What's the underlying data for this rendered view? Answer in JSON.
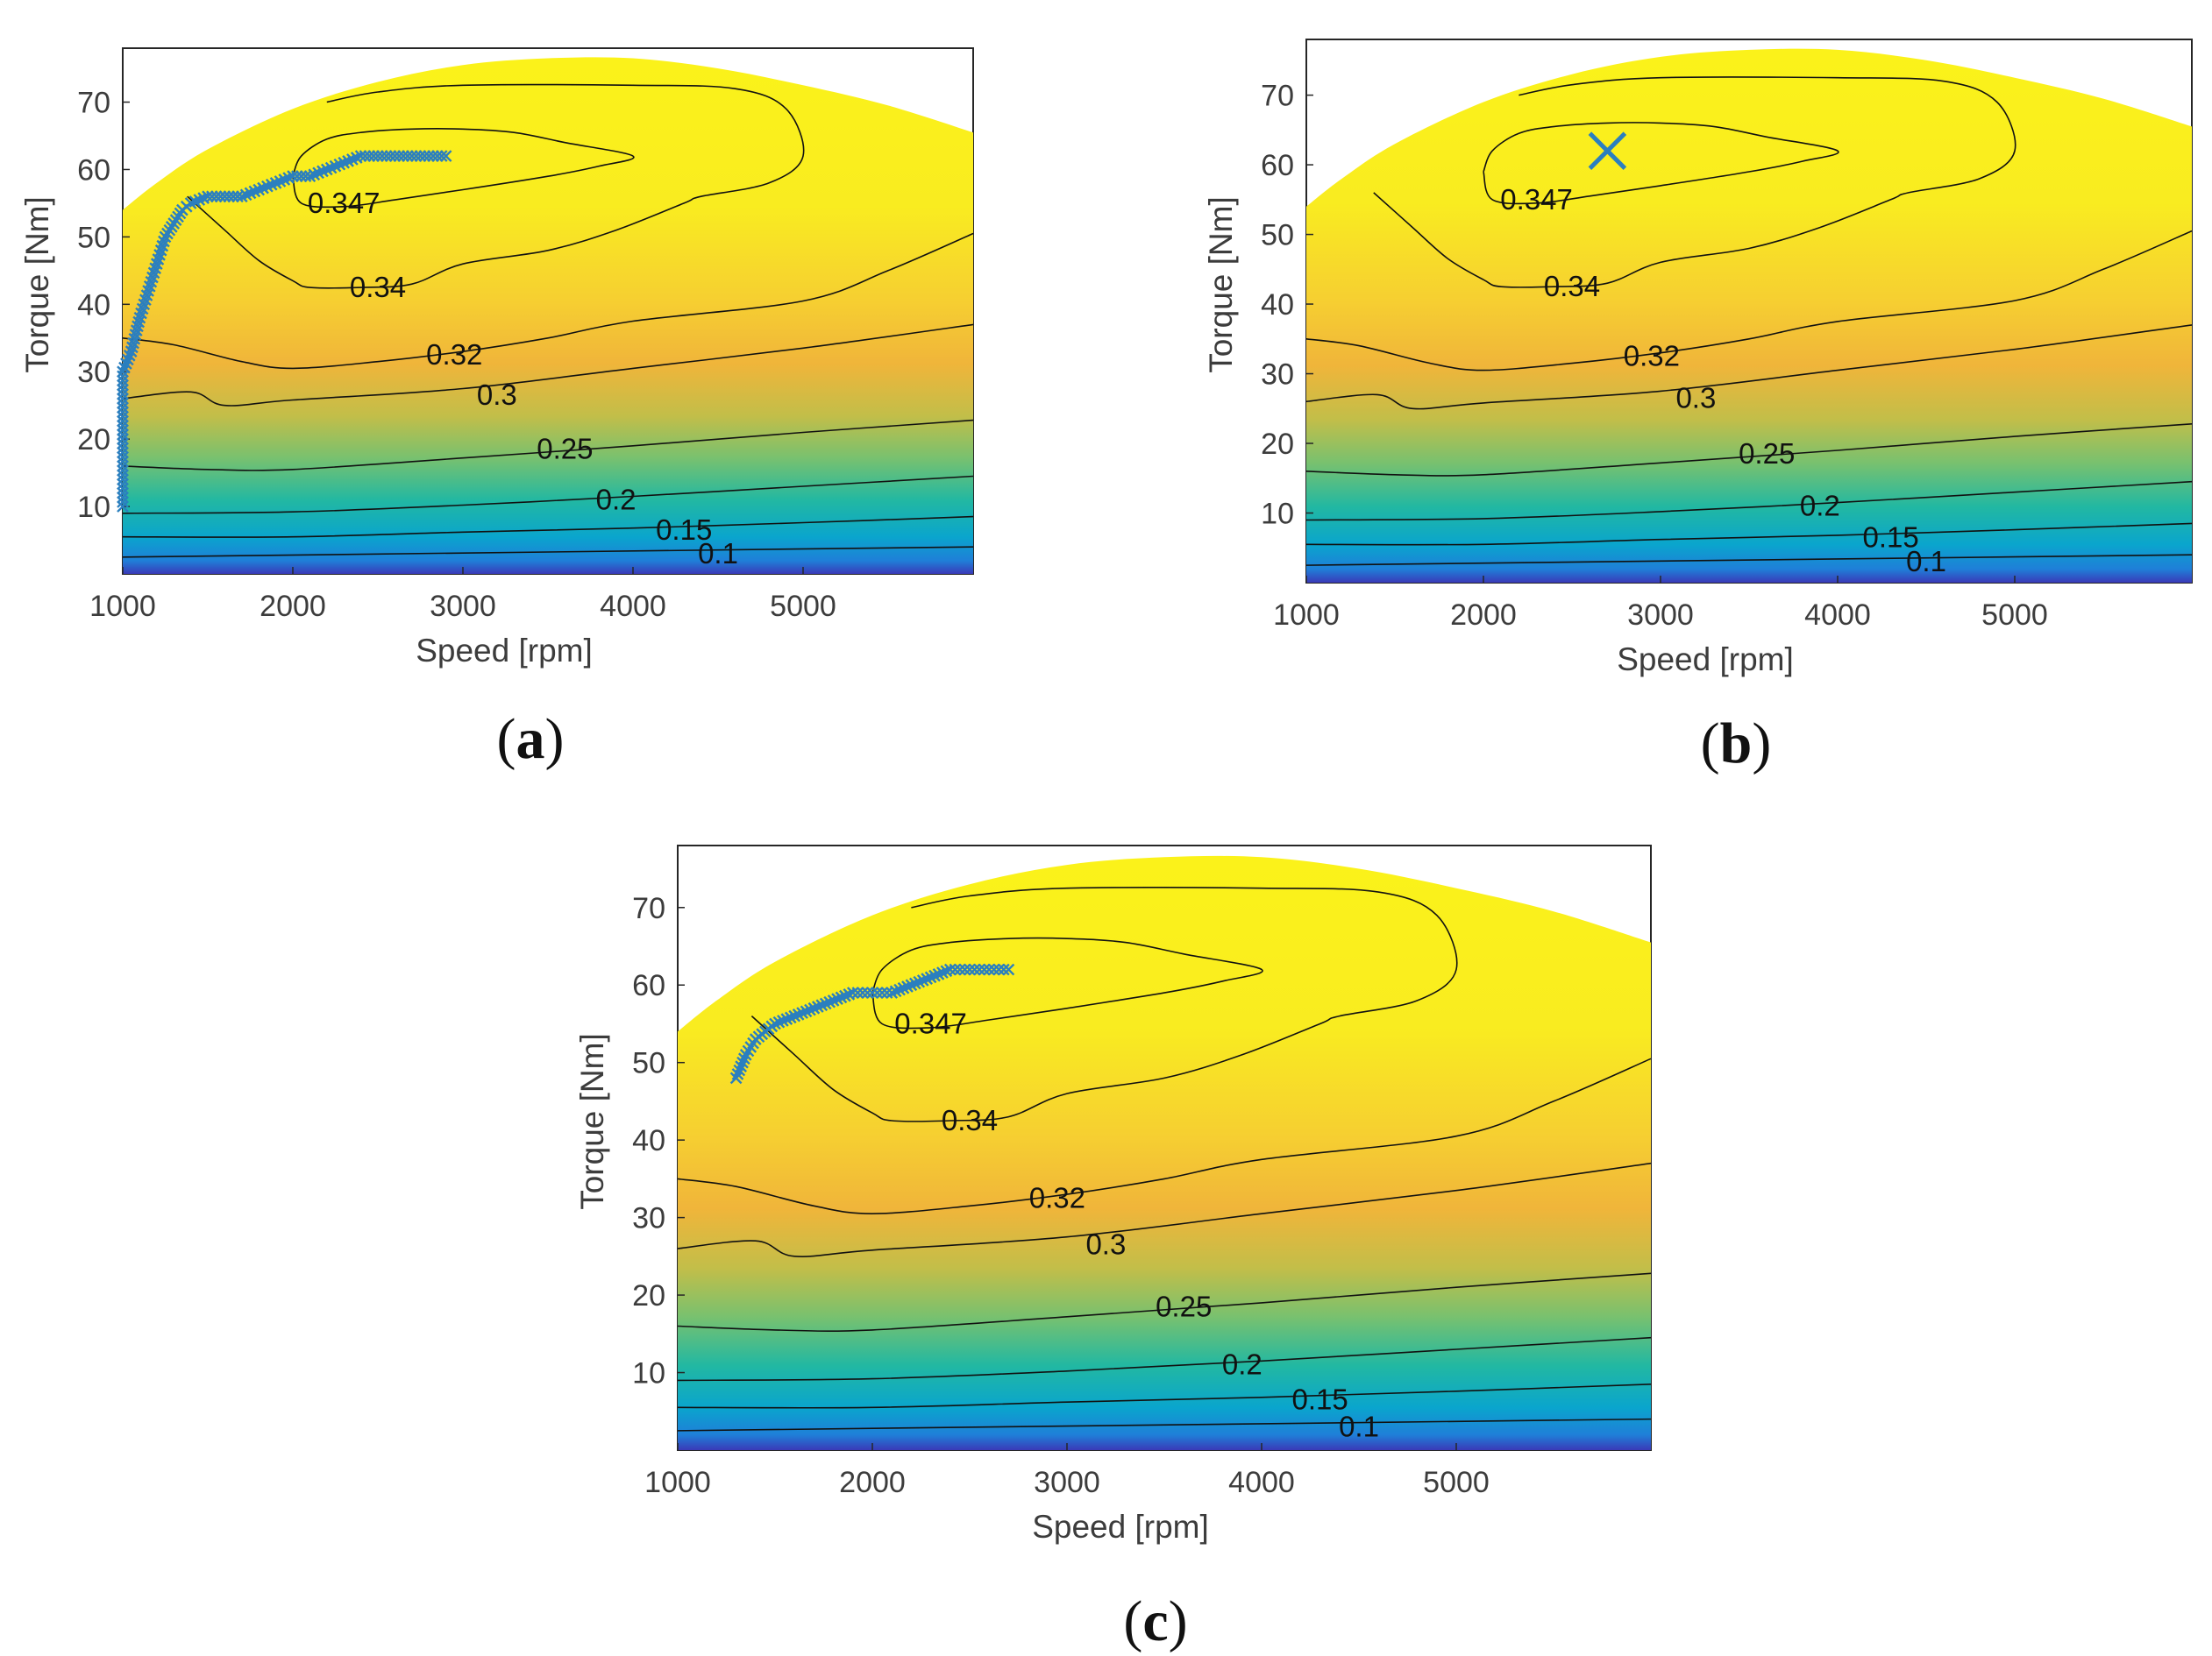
{
  "chart_data": [
    {
      "type": "contour",
      "panel_label": "a",
      "xlabel": "Speed [rpm]",
      "ylabel": "Torque [Nm]",
      "xlim": [
        1000,
        6000
      ],
      "ylim": [
        0,
        78
      ],
      "xticks": [
        "1000",
        "2000",
        "3000",
        "4000",
        "5000"
      ],
      "yticks": [
        "10",
        "20",
        "30",
        "40",
        "50",
        "60",
        "70"
      ],
      "contour_levels": [
        "0.347",
        "0.34",
        "0.32",
        "0.3",
        "0.25",
        "0.2",
        "0.15",
        "0.1"
      ],
      "trajectory": [
        [
          1000,
          10
        ],
        [
          1000,
          20
        ],
        [
          1000,
          30
        ],
        [
          1050,
          33
        ],
        [
          1100,
          38
        ],
        [
          1150,
          42
        ],
        [
          1200,
          46
        ],
        [
          1250,
          50
        ],
        [
          1300,
          52
        ],
        [
          1350,
          54
        ],
        [
          1400,
          55
        ],
        [
          1500,
          56
        ],
        [
          1600,
          56
        ],
        [
          1700,
          56
        ],
        [
          1800,
          57
        ],
        [
          1900,
          58
        ],
        [
          2000,
          59
        ],
        [
          2100,
          59
        ],
        [
          2200,
          60
        ],
        [
          2300,
          61
        ],
        [
          2400,
          62
        ],
        [
          2600,
          62
        ],
        [
          2800,
          62
        ],
        [
          2900,
          62
        ]
      ]
    },
    {
      "type": "contour",
      "panel_label": "b",
      "xlabel": "Speed [rpm]",
      "ylabel": "Torque [Nm]",
      "xlim": [
        1000,
        6000
      ],
      "ylim": [
        0,
        78
      ],
      "xticks": [
        "1000",
        "2000",
        "3000",
        "4000",
        "5000"
      ],
      "yticks": [
        "10",
        "20",
        "30",
        "40",
        "50",
        "60",
        "70"
      ],
      "contour_levels": [
        "0.347",
        "0.34",
        "0.32",
        "0.3",
        "0.25",
        "0.2",
        "0.15",
        "0.1"
      ],
      "optimum_point": [
        2700,
        62
      ]
    },
    {
      "type": "contour",
      "panel_label": "c",
      "xlabel": "Speed [rpm]",
      "ylabel": "Torque [Nm]",
      "xlim": [
        1000,
        6000
      ],
      "ylim": [
        0,
        78
      ],
      "xticks": [
        "1000",
        "2000",
        "3000",
        "4000",
        "5000"
      ],
      "yticks": [
        "10",
        "20",
        "30",
        "40",
        "50",
        "60",
        "70"
      ],
      "contour_levels": [
        "0.347",
        "0.34",
        "0.32",
        "0.3",
        "0.25",
        "0.2",
        "0.15",
        "0.1"
      ],
      "trajectory": [
        [
          1300,
          48
        ],
        [
          1350,
          51
        ],
        [
          1400,
          53
        ],
        [
          1500,
          55
        ],
        [
          1600,
          56
        ],
        [
          1700,
          57
        ],
        [
          1800,
          58
        ],
        [
          1900,
          59
        ],
        [
          2000,
          59
        ],
        [
          2100,
          59
        ],
        [
          2200,
          60
        ],
        [
          2300,
          61
        ],
        [
          2400,
          62
        ],
        [
          2500,
          62
        ],
        [
          2600,
          62
        ],
        [
          2700,
          62
        ]
      ]
    }
  ],
  "colors": {
    "marker": "#2b7fbf",
    "contour": "#111111"
  }
}
